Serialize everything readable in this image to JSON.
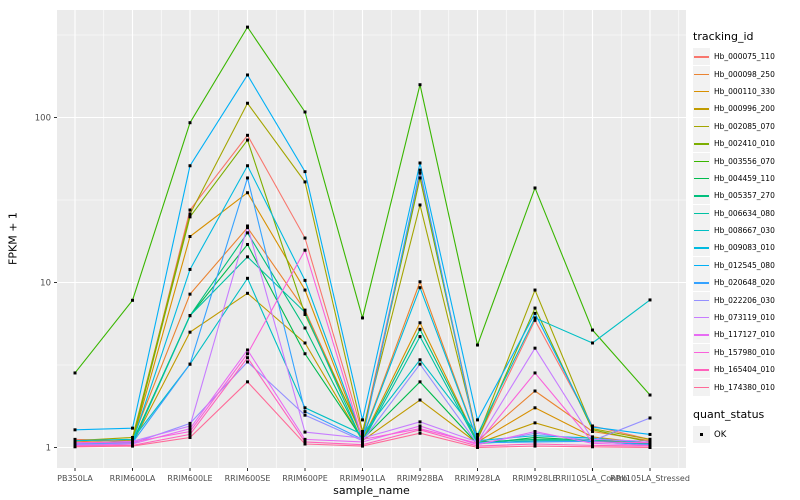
{
  "chart_data": {
    "type": "line",
    "title": "",
    "xlabel": "sample_name",
    "ylabel": "FPKM + 1",
    "y_scale": "log10",
    "ylim": [
      0.75,
      450
    ],
    "y_ticks": [
      1,
      10,
      100
    ],
    "y_tick_labels": [
      "1",
      "10",
      "100"
    ],
    "y_minor_ticks": [
      3.162,
      31.62,
      316.2
    ],
    "grid": "white-on-gray",
    "panel_bg": "#EBEBEB",
    "grid_color": "#FFFFFF",
    "tick_text_color": "#4D4D4D",
    "point_marker": "black-square",
    "legend_title": "tracking_id",
    "legend_position": "right",
    "secondary_legend": {
      "title": "quant_status",
      "entries": [
        {
          "label": "OK",
          "marker": "black-square"
        }
      ]
    },
    "categories": [
      "PB350LA",
      "RRIM600LA",
      "RRIM600LE",
      "RRIM600SE",
      "RRIM600PE",
      "RRIM901LA",
      "RRIM928BA",
      "RRIM928LA",
      "RRIM928LE",
      "RRII105LA_Control",
      "RRII105LA_Stressed"
    ],
    "series": [
      {
        "name": "Hb_000075_110",
        "color": "#F8766D",
        "values": [
          1.12,
          1.1,
          27.5,
          78,
          18.6,
          1.22,
          46,
          1.12,
          5.9,
          1.35,
          1.12
        ]
      },
      {
        "name": "Hb_000098_250",
        "color": "#EA8331",
        "values": [
          1.08,
          1.12,
          8.5,
          21.5,
          6.8,
          1.15,
          10.1,
          1.1,
          2.2,
          1.25,
          1.1
        ]
      },
      {
        "name": "Hb_000110_330",
        "color": "#D89000",
        "values": [
          1.05,
          1.08,
          19,
          35,
          9.0,
          1.12,
          5.7,
          1.08,
          1.74,
          1.16,
          1.06
        ]
      },
      {
        "name": "Hb_000996_200",
        "color": "#C09B00",
        "values": [
          1.04,
          1.06,
          5.0,
          8.6,
          4.3,
          1.1,
          1.94,
          1.06,
          1.41,
          1.12,
          1.05
        ]
      },
      {
        "name": "Hb_002085_070",
        "color": "#A3A500",
        "values": [
          1.1,
          1.15,
          26,
          122,
          40.7,
          1.25,
          29.5,
          1.15,
          9.0,
          1.3,
          1.12
        ]
      },
      {
        "name": "Hb_002410_010",
        "color": "#7CAE00",
        "values": [
          1.06,
          1.1,
          25,
          73,
          6.4,
          1.18,
          43,
          1.12,
          7.0,
          1.28,
          1.08
        ]
      },
      {
        "name": "Hb_003556_070",
        "color": "#39B600",
        "values": [
          2.83,
          7.8,
          93,
          353,
          108,
          6.1,
          158,
          4.18,
          37.4,
          5.15,
          2.08
        ]
      },
      {
        "name": "Hb_004459_110",
        "color": "#00BB4E",
        "values": [
          1.05,
          1.08,
          6.3,
          17,
          3.7,
          1.12,
          2.5,
          1.05,
          1.15,
          1.1,
          1.05
        ]
      },
      {
        "name": "Hb_005357_270",
        "color": "#00BF7D",
        "values": [
          1.04,
          1.06,
          6.3,
          20,
          5.3,
          1.1,
          5.2,
          1.08,
          1.12,
          1.12,
          1.04
        ]
      },
      {
        "name": "Hb_006634_080",
        "color": "#00C1A3",
        "values": [
          1.03,
          1.05,
          6.3,
          14.3,
          6.6,
          1.08,
          4.7,
          1.06,
          1.1,
          1.1,
          1.03
        ]
      },
      {
        "name": "Hb_008667_030",
        "color": "#00BFC4",
        "values": [
          1.1,
          1.12,
          3.2,
          10.6,
          1.74,
          1.2,
          3.4,
          1.2,
          6.1,
          4.3,
          7.84
        ]
      },
      {
        "name": "Hb_009083_010",
        "color": "#00BAE0",
        "values": [
          1.06,
          1.08,
          12,
          51,
          10.3,
          1.14,
          9.3,
          1.1,
          1.18,
          1.14,
          1.06
        ]
      },
      {
        "name": "Hb_012545_080",
        "color": "#00B0F6",
        "values": [
          1.28,
          1.31,
          51,
          181,
          47,
          1.47,
          53,
          1.47,
          6.5,
          1.33,
          1.2
        ]
      },
      {
        "name": "Hb_020648_020",
        "color": "#35A2FF",
        "values": [
          1.05,
          1.07,
          3.2,
          43,
          1.65,
          1.12,
          48,
          1.07,
          1.08,
          1.09,
          1.04
        ]
      },
      {
        "name": "Hb_022206_030",
        "color": "#9590FF",
        "values": [
          1.04,
          1.06,
          1.4,
          3.3,
          1.57,
          1.1,
          3.2,
          1.05,
          1.22,
          1.1,
          1.51
        ]
      },
      {
        "name": "Hb_073119_010",
        "color": "#C77CFF",
        "values": [
          1.06,
          1.09,
          1.35,
          22,
          1.24,
          1.14,
          1.43,
          1.08,
          4.0,
          1.12,
          1.09
        ]
      },
      {
        "name": "Hb_117127_010",
        "color": "#E76BF3",
        "values": [
          1.03,
          1.05,
          1.3,
          3.9,
          1.12,
          1.08,
          1.35,
          1.04,
          1.25,
          1.06,
          1.03
        ]
      },
      {
        "name": "Hb_157980_010",
        "color": "#FA62DB",
        "values": [
          1.07,
          1.08,
          1.25,
          3.7,
          15.7,
          1.12,
          1.3,
          1.06,
          2.83,
          1.08,
          1.07
        ]
      },
      {
        "name": "Hb_165404_010",
        "color": "#FF62BC",
        "values": [
          1.02,
          1.03,
          1.2,
          3.5,
          1.08,
          1.04,
          1.28,
          1.02,
          1.05,
          1.03,
          1.02
        ]
      },
      {
        "name": "Hb_174380_010",
        "color": "#FF6A98",
        "values": [
          1.01,
          1.02,
          1.15,
          2.5,
          1.05,
          1.02,
          1.22,
          1.0,
          1.02,
          1.01,
          1.0
        ]
      }
    ]
  }
}
